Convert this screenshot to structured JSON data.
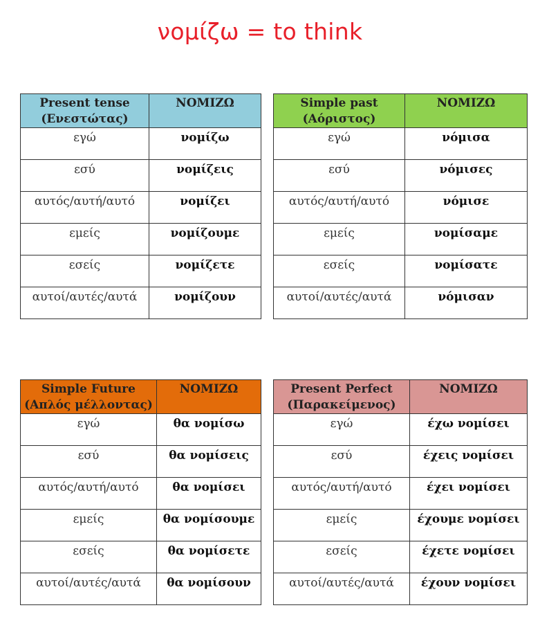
{
  "title": "νομίζω = to think",
  "tables": {
    "present": {
      "header_tense_line1": "Present tense",
      "header_tense_line2": "(Ενεστώτας)",
      "header_verb": "ΝΟΜΙΖΩ",
      "color": "#92cddc",
      "rows": [
        {
          "pronoun": "εγώ",
          "form": "νομίζω"
        },
        {
          "pronoun": "εσύ",
          "form": "νομίζεις"
        },
        {
          "pronoun": "αυτός/αυτή/αυτό",
          "form": "νομίζει"
        },
        {
          "pronoun": "εμείς",
          "form": "νομίζουμε"
        },
        {
          "pronoun": "εσείς",
          "form": "νομίζετε"
        },
        {
          "pronoun": "αυτοί/αυτές/αυτά",
          "form": "νομίζουν"
        }
      ]
    },
    "past": {
      "header_tense_line1": "Simple past",
      "header_tense_line2": "(Αόριστος)",
      "header_verb": "ΝΟΜΙΖΩ",
      "color": "#8fd14f",
      "rows": [
        {
          "pronoun": "εγώ",
          "form": "νόμισα"
        },
        {
          "pronoun": "εσύ",
          "form": "νόμισες"
        },
        {
          "pronoun": "αυτός/αυτή/αυτό",
          "form": "νόμισε"
        },
        {
          "pronoun": "εμείς",
          "form": "νομίσαμε"
        },
        {
          "pronoun": "εσείς",
          "form": "νομίσατε"
        },
        {
          "pronoun": "αυτοί/αυτές/αυτά",
          "form": "νόμισαν"
        }
      ]
    },
    "future": {
      "header_tense_line1": "Simple Future",
      "header_tense_line2": "(Απλός μέλλοντας)",
      "header_verb": "ΝΟΜΙΖΩ",
      "color": "#e36c0a",
      "rows": [
        {
          "pronoun": "εγώ",
          "form": "θα νομίσω"
        },
        {
          "pronoun": "εσύ",
          "form": "θα νομίσεις"
        },
        {
          "pronoun": "αυτός/αυτή/αυτό",
          "form": "θα νομίσει"
        },
        {
          "pronoun": "εμείς",
          "form": "θα νομίσουμε"
        },
        {
          "pronoun": "εσείς",
          "form": "θα νομίσετε"
        },
        {
          "pronoun": "αυτοί/αυτές/αυτά",
          "form": "θα νομίσουν"
        }
      ]
    },
    "perfect": {
      "header_tense_line1": "Present Perfect",
      "header_tense_line2": "(Παρακείμενος)",
      "header_verb": "ΝΟΜΙΖΩ",
      "color": "#d99694",
      "rows": [
        {
          "pronoun": "εγώ",
          "form": "έχω νομίσει"
        },
        {
          "pronoun": "εσύ",
          "form": "έχεις νομίσει"
        },
        {
          "pronoun": "αυτός/αυτή/αυτό",
          "form": "έχει νομίσει"
        },
        {
          "pronoun": "εμείς",
          "form": "έχουμε νομίσει"
        },
        {
          "pronoun": "εσείς",
          "form": "έχετε νομίσει"
        },
        {
          "pronoun": "αυτοί/αυτές/αυτά",
          "form": "έχουν νομίσει"
        }
      ]
    }
  }
}
